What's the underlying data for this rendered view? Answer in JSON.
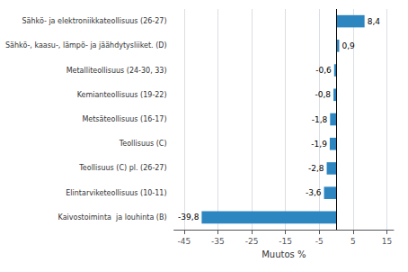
{
  "chart_data": {
    "type": "bar",
    "orientation": "horizontal",
    "categories": [
      "Kaivostoiminta  ja louhinta (B)",
      "Elintarviketeollisuus (10-11)",
      "Teollisuus (C) pl. (26-27)",
      "Teollisuus (C)",
      "Metsäteollisuus (16-17)",
      "Kemianteollisuus (19-22)",
      "Metalliteollisuus (24-30, 33)",
      "Sähkö-, kaasu-, lämpö- ja jäähdytysliiket. (D)",
      "Sähkö- ja elektroniikkateollisuus (26-27)"
    ],
    "values": [
      -39.8,
      -3.6,
      -2.8,
      -1.9,
      -1.8,
      -0.8,
      -0.6,
      0.9,
      8.4
    ],
    "value_labels": [
      "-39,8",
      "-3,6",
      "-2,8",
      "-1,9",
      "-1,8",
      "-0,8",
      "-0,6",
      "0,9",
      "8,4"
    ],
    "data_labels": true,
    "color": "#2e86c1",
    "xlabel": "Muutos %",
    "xlim": [
      -48,
      17
    ],
    "xticks": [
      -45,
      -35,
      -25,
      -15,
      -5,
      5,
      15
    ],
    "grid": true
  }
}
